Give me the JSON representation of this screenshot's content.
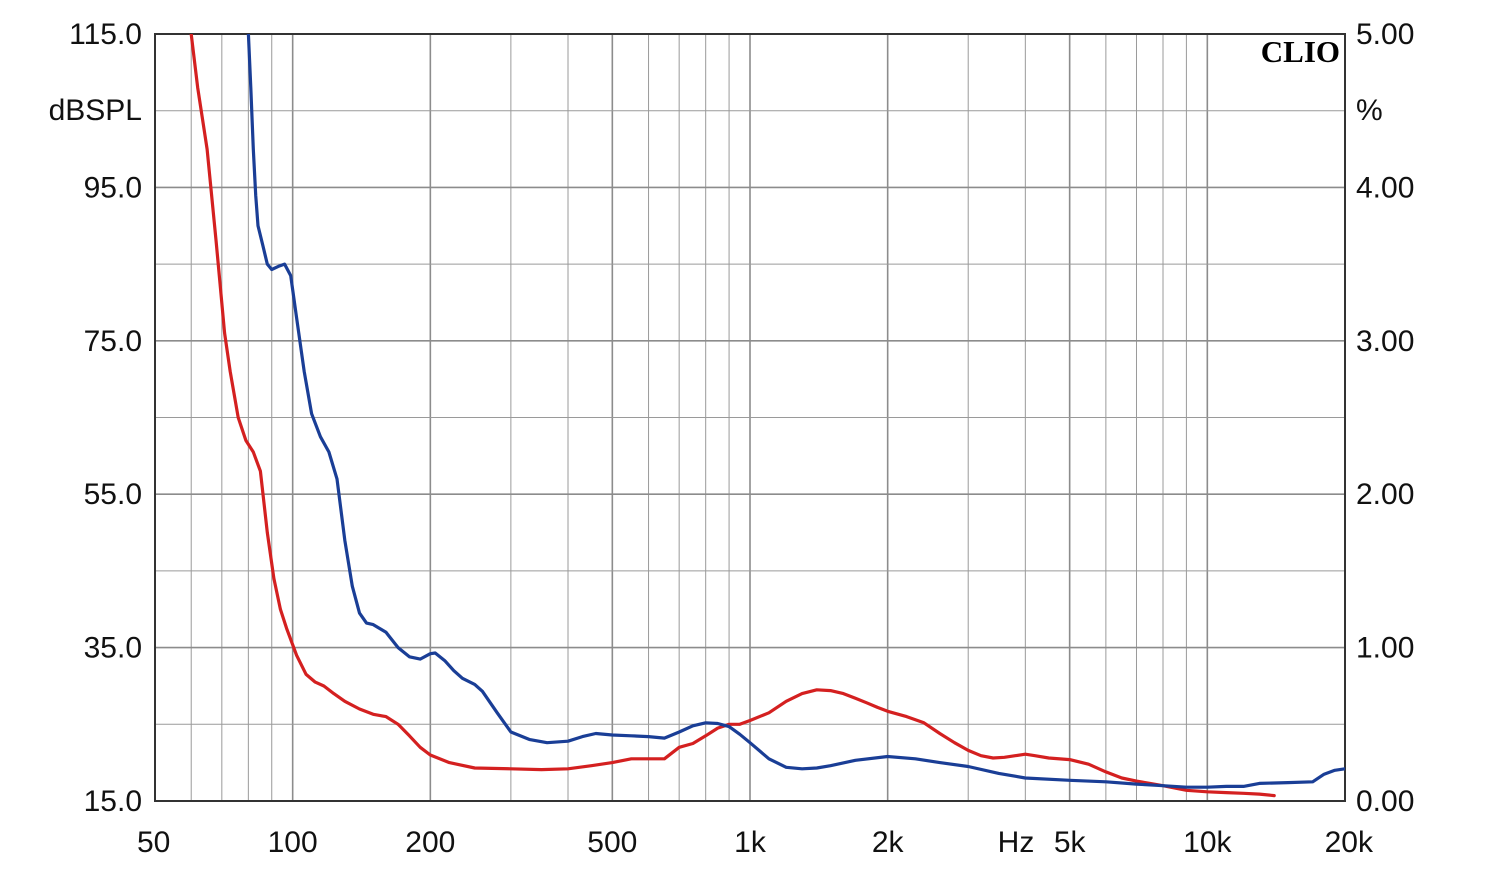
{
  "chart_data": {
    "type": "line",
    "brand": "CLIO",
    "x_axis": {
      "scale": "log",
      "range": [
        50,
        20000
      ],
      "tick_labels": [
        {
          "value": 50,
          "label": "50"
        },
        {
          "value": 100,
          "label": "100"
        },
        {
          "value": 200,
          "label": "200"
        },
        {
          "value": 500,
          "label": "500"
        },
        {
          "value": 1000,
          "label": "1k"
        },
        {
          "value": 2000,
          "label": "2k"
        },
        {
          "value": 5000,
          "label": "5k"
        },
        {
          "value": 10000,
          "label": "10k"
        },
        {
          "value": 20000,
          "label": "20k"
        }
      ],
      "unit_label": "Hz"
    },
    "y_left": {
      "unit": "dBSPL",
      "range": [
        15,
        115
      ],
      "ticks": [
        115,
        95,
        75,
        55,
        35,
        15
      ],
      "tick_labels": [
        "115.0",
        "95.0",
        "75.0",
        "55.0",
        "35.0",
        "15.0"
      ]
    },
    "y_right": {
      "unit": "%",
      "range": [
        0,
        5
      ],
      "tick_labels": [
        "5.00",
        "4.00",
        "3.00",
        "2.00",
        "1.00",
        "0.00"
      ]
    },
    "grid": true,
    "series": [
      {
        "color": "#d42020",
        "axis": "left",
        "points": [
          [
            60,
            115
          ],
          [
            62,
            108
          ],
          [
            65,
            100
          ],
          [
            68,
            88
          ],
          [
            71,
            76
          ],
          [
            73,
            71
          ],
          [
            76,
            65
          ],
          [
            79,
            62
          ],
          [
            82,
            60.5
          ],
          [
            85,
            58
          ],
          [
            88,
            50
          ],
          [
            91,
            44
          ],
          [
            94,
            40
          ],
          [
            97,
            37.5
          ],
          [
            102,
            34
          ],
          [
            107,
            31.5
          ],
          [
            112,
            30.5
          ],
          [
            117,
            30
          ],
          [
            123,
            29
          ],
          [
            130,
            28
          ],
          [
            140,
            27
          ],
          [
            150,
            26.3
          ],
          [
            160,
            26
          ],
          [
            170,
            25
          ],
          [
            180,
            23.5
          ],
          [
            190,
            22
          ],
          [
            200,
            21
          ],
          [
            220,
            20
          ],
          [
            250,
            19.3
          ],
          [
            300,
            19.2
          ],
          [
            350,
            19.1
          ],
          [
            400,
            19.2
          ],
          [
            450,
            19.6
          ],
          [
            500,
            20
          ],
          [
            550,
            20.5
          ],
          [
            600,
            20.5
          ],
          [
            650,
            20.5
          ],
          [
            700,
            22
          ],
          [
            750,
            22.5
          ],
          [
            800,
            23.5
          ],
          [
            850,
            24.5
          ],
          [
            900,
            25
          ],
          [
            950,
            25
          ],
          [
            1000,
            25.5
          ],
          [
            1100,
            26.5
          ],
          [
            1200,
            28
          ],
          [
            1300,
            29
          ],
          [
            1400,
            29.5
          ],
          [
            1500,
            29.4
          ],
          [
            1600,
            29
          ],
          [
            1700,
            28.4
          ],
          [
            1800,
            27.8
          ],
          [
            1900,
            27.2
          ],
          [
            2000,
            26.7
          ],
          [
            2200,
            26
          ],
          [
            2400,
            25.2
          ],
          [
            2600,
            23.8
          ],
          [
            2800,
            22.6
          ],
          [
            3000,
            21.6
          ],
          [
            3200,
            20.9
          ],
          [
            3400,
            20.6
          ],
          [
            3600,
            20.7
          ],
          [
            3800,
            20.9
          ],
          [
            4000,
            21.1
          ],
          [
            4200,
            20.9
          ],
          [
            4500,
            20.6
          ],
          [
            5000,
            20.4
          ],
          [
            5500,
            19.8
          ],
          [
            6000,
            18.8
          ],
          [
            6500,
            18
          ],
          [
            7000,
            17.6
          ],
          [
            7500,
            17.3
          ],
          [
            8000,
            17
          ],
          [
            9000,
            16.4
          ],
          [
            10000,
            16.2
          ],
          [
            11000,
            16.1
          ],
          [
            12000,
            16
          ],
          [
            13000,
            15.9
          ],
          [
            14000,
            15.7
          ]
        ]
      },
      {
        "color": "#1a3e96",
        "axis": "left",
        "points": [
          [
            80,
            115
          ],
          [
            81,
            108
          ],
          [
            82,
            100
          ],
          [
            83,
            94
          ],
          [
            84,
            90
          ],
          [
            86,
            87.5
          ],
          [
            88,
            85
          ],
          [
            90,
            84.3
          ],
          [
            93,
            84.7
          ],
          [
            96,
            85
          ],
          [
            99,
            83.5
          ],
          [
            102,
            78
          ],
          [
            106,
            71
          ],
          [
            110,
            65.5
          ],
          [
            115,
            62.5
          ],
          [
            120,
            60.5
          ],
          [
            125,
            57
          ],
          [
            130,
            49
          ],
          [
            135,
            43
          ],
          [
            140,
            39.5
          ],
          [
            145,
            38.2
          ],
          [
            150,
            38
          ],
          [
            160,
            37
          ],
          [
            170,
            35
          ],
          [
            180,
            33.8
          ],
          [
            190,
            33.5
          ],
          [
            200,
            34.2
          ],
          [
            205,
            34.3
          ],
          [
            215,
            33.3
          ],
          [
            225,
            32
          ],
          [
            235,
            31
          ],
          [
            250,
            30.2
          ],
          [
            260,
            29.3
          ],
          [
            280,
            26.5
          ],
          [
            300,
            24
          ],
          [
            330,
            23
          ],
          [
            360,
            22.6
          ],
          [
            400,
            22.8
          ],
          [
            430,
            23.4
          ],
          [
            460,
            23.8
          ],
          [
            500,
            23.6
          ],
          [
            550,
            23.5
          ],
          [
            600,
            23.4
          ],
          [
            650,
            23.2
          ],
          [
            700,
            24
          ],
          [
            750,
            24.8
          ],
          [
            800,
            25.2
          ],
          [
            850,
            25.1
          ],
          [
            900,
            24.7
          ],
          [
            950,
            23.7
          ],
          [
            1000,
            22.6
          ],
          [
            1100,
            20.5
          ],
          [
            1200,
            19.4
          ],
          [
            1300,
            19.2
          ],
          [
            1400,
            19.3
          ],
          [
            1500,
            19.6
          ],
          [
            1700,
            20.3
          ],
          [
            2000,
            20.8
          ],
          [
            2300,
            20.5
          ],
          [
            2600,
            20
          ],
          [
            3000,
            19.5
          ],
          [
            3500,
            18.6
          ],
          [
            4000,
            18
          ],
          [
            5000,
            17.7
          ],
          [
            6000,
            17.5
          ],
          [
            7000,
            17.2
          ],
          [
            8000,
            17
          ],
          [
            9000,
            16.8
          ],
          [
            10000,
            16.8
          ],
          [
            11000,
            16.9
          ],
          [
            12000,
            16.9
          ],
          [
            13000,
            17.3
          ],
          [
            15000,
            17.4
          ],
          [
            17000,
            17.5
          ],
          [
            18000,
            18.5
          ],
          [
            19000,
            19
          ],
          [
            20000,
            19.2
          ]
        ]
      }
    ]
  }
}
